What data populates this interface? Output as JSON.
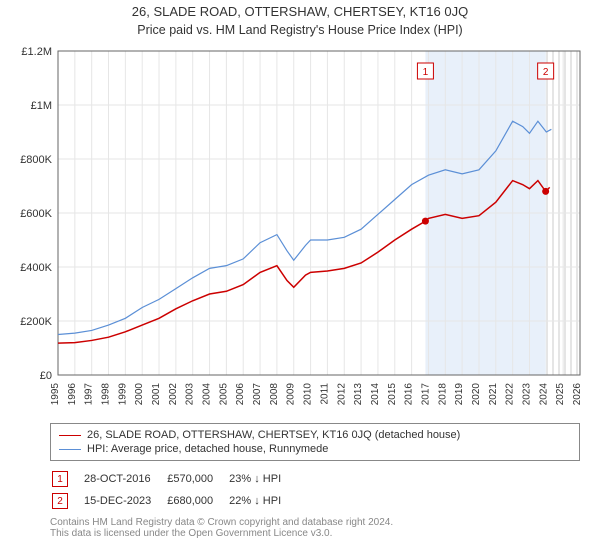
{
  "title": "26, SLADE ROAD, OTTERSHAW, CHERTSEY, KT16 0JQ",
  "subtitle": "Price paid vs. HM Land Registry's House Price Index (HPI)",
  "chart": {
    "type": "line",
    "background_color": "#ffffff",
    "grid_color": "#e6e6e6",
    "axis_color": "#666666",
    "text_color": "#333333",
    "y": {
      "min": 0,
      "max": 1200000,
      "ticks": [
        0,
        200000,
        400000,
        600000,
        800000,
        1000000,
        1200000
      ],
      "tick_labels": [
        "£0",
        "£200K",
        "£400K",
        "£600K",
        "£800K",
        "£1M",
        "£1.2M"
      ],
      "label_fontsize": 11
    },
    "x": {
      "min": 1995,
      "max": 2026,
      "ticks": [
        1995,
        1996,
        1997,
        1998,
        1999,
        2000,
        2001,
        2002,
        2003,
        2004,
        2005,
        2006,
        2007,
        2008,
        2009,
        2010,
        2011,
        2012,
        2013,
        2014,
        2015,
        2016,
        2017,
        2018,
        2019,
        2020,
        2021,
        2022,
        2023,
        2024,
        2025,
        2026
      ],
      "label_fontsize": 10
    },
    "shade_bands": [
      {
        "from": 2016.82,
        "to": 2023.96,
        "color": "#d6e4f5",
        "opacity": 0.55
      }
    ],
    "hatch_bands": [
      {
        "from": 2024,
        "to": 2026,
        "color": "#cccccc"
      }
    ],
    "series": [
      {
        "name": "price_paid",
        "label": "26, SLADE ROAD, OTTERSHAW, CHERTSEY, KT16 0JQ (detached house)",
        "color": "#cc0000",
        "width": 1.5,
        "data": [
          [
            1995,
            118000
          ],
          [
            1996,
            120000
          ],
          [
            1997,
            128000
          ],
          [
            1998,
            140000
          ],
          [
            1999,
            160000
          ],
          [
            2000,
            185000
          ],
          [
            2001,
            210000
          ],
          [
            2002,
            245000
          ],
          [
            2003,
            275000
          ],
          [
            2004,
            300000
          ],
          [
            2005,
            310000
          ],
          [
            2006,
            335000
          ],
          [
            2007,
            380000
          ],
          [
            2008,
            405000
          ],
          [
            2008.6,
            350000
          ],
          [
            2009,
            325000
          ],
          [
            2009.7,
            370000
          ],
          [
            2010,
            380000
          ],
          [
            2011,
            385000
          ],
          [
            2012,
            395000
          ],
          [
            2013,
            415000
          ],
          [
            2014,
            455000
          ],
          [
            2015,
            500000
          ],
          [
            2016,
            540000
          ],
          [
            2016.82,
            570000
          ],
          [
            2017,
            580000
          ],
          [
            2018,
            595000
          ],
          [
            2019,
            580000
          ],
          [
            2020,
            590000
          ],
          [
            2021,
            640000
          ],
          [
            2022,
            720000
          ],
          [
            2022.6,
            705000
          ],
          [
            2023,
            690000
          ],
          [
            2023.5,
            720000
          ],
          [
            2023.96,
            680000
          ],
          [
            2024.2,
            695000
          ]
        ]
      },
      {
        "name": "hpi",
        "label": "HPI: Average price, detached house, Runnymede",
        "color": "#5b8fd6",
        "width": 1.2,
        "data": [
          [
            1995,
            150000
          ],
          [
            1996,
            155000
          ],
          [
            1997,
            165000
          ],
          [
            1998,
            185000
          ],
          [
            1999,
            210000
          ],
          [
            2000,
            250000
          ],
          [
            2001,
            280000
          ],
          [
            2002,
            320000
          ],
          [
            2003,
            360000
          ],
          [
            2004,
            395000
          ],
          [
            2005,
            405000
          ],
          [
            2006,
            430000
          ],
          [
            2007,
            490000
          ],
          [
            2008,
            520000
          ],
          [
            2008.6,
            460000
          ],
          [
            2009,
            425000
          ],
          [
            2009.7,
            480000
          ],
          [
            2010,
            500000
          ],
          [
            2011,
            500000
          ],
          [
            2012,
            510000
          ],
          [
            2013,
            540000
          ],
          [
            2014,
            595000
          ],
          [
            2015,
            650000
          ],
          [
            2016,
            705000
          ],
          [
            2017,
            740000
          ],
          [
            2018,
            760000
          ],
          [
            2019,
            745000
          ],
          [
            2020,
            760000
          ],
          [
            2021,
            830000
          ],
          [
            2022,
            940000
          ],
          [
            2022.6,
            920000
          ],
          [
            2023,
            895000
          ],
          [
            2023.5,
            940000
          ],
          [
            2024,
            900000
          ],
          [
            2024.3,
            910000
          ]
        ]
      }
    ],
    "markers": [
      {
        "id": "1",
        "year": 2016.82,
        "value": 570000,
        "color": "#cc0000"
      },
      {
        "id": "2",
        "year": 2023.96,
        "value": 680000,
        "color": "#cc0000"
      }
    ]
  },
  "legend": {
    "series1": "26, SLADE ROAD, OTTERSHAW, CHERTSEY, KT16 0JQ (detached house)",
    "series2": "HPI: Average price, detached house, Runnymede",
    "color1": "#cc0000",
    "color2": "#5b8fd6"
  },
  "marker_rows": [
    {
      "id": "1",
      "date": "28-OCT-2016",
      "price": "£570,000",
      "pct": "23%",
      "arrow": "↓",
      "vs": "HPI",
      "color": "#cc0000"
    },
    {
      "id": "2",
      "date": "15-DEC-2023",
      "price": "£680,000",
      "pct": "22%",
      "arrow": "↓",
      "vs": "HPI",
      "color": "#cc0000"
    }
  ],
  "footer": {
    "line1": "Contains HM Land Registry data © Crown copyright and database right 2024.",
    "line2": "This data is licensed under the Open Government Licence v3.0."
  }
}
